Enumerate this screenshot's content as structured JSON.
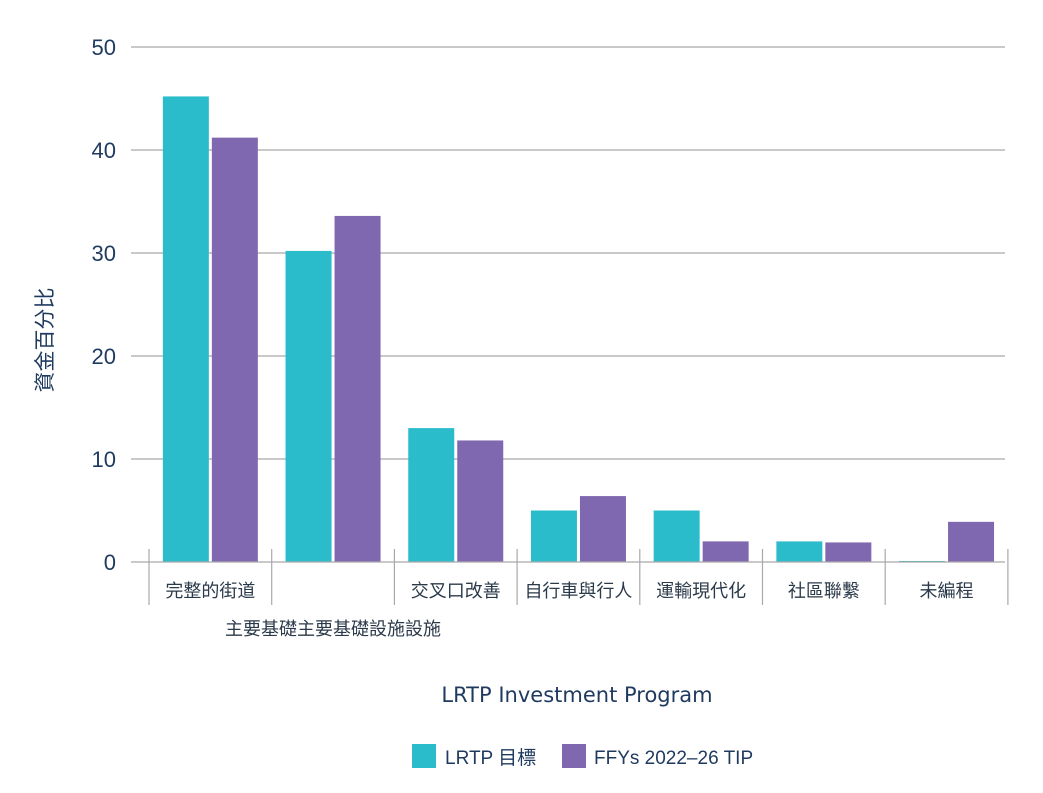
{
  "chart_data": {
    "type": "bar",
    "title": "",
    "xlabel": "LRTP Investment Program",
    "ylabel": "資金百分比",
    "ylim": [
      0,
      50
    ],
    "yticks": [
      0,
      10,
      20,
      30,
      40,
      50
    ],
    "grid": true,
    "legend_position": "bottom",
    "categories": [
      "完整的街道",
      "主要基礎主要基礎設施設施",
      "交叉口改善",
      "自行車與行人",
      "運輸現代化",
      "社區聯繫",
      "未編程"
    ],
    "series": [
      {
        "name": "LRTP 目標",
        "color": "#2bbccb",
        "values": [
          45.2,
          30.2,
          13.0,
          5.0,
          5.0,
          2.0,
          0.1
        ]
      },
      {
        "name": "FFYs 2022–26 TIP",
        "color": "#7f68b0",
        "values": [
          41.2,
          33.6,
          11.8,
          6.4,
          2.0,
          1.9,
          3.9
        ]
      }
    ]
  }
}
